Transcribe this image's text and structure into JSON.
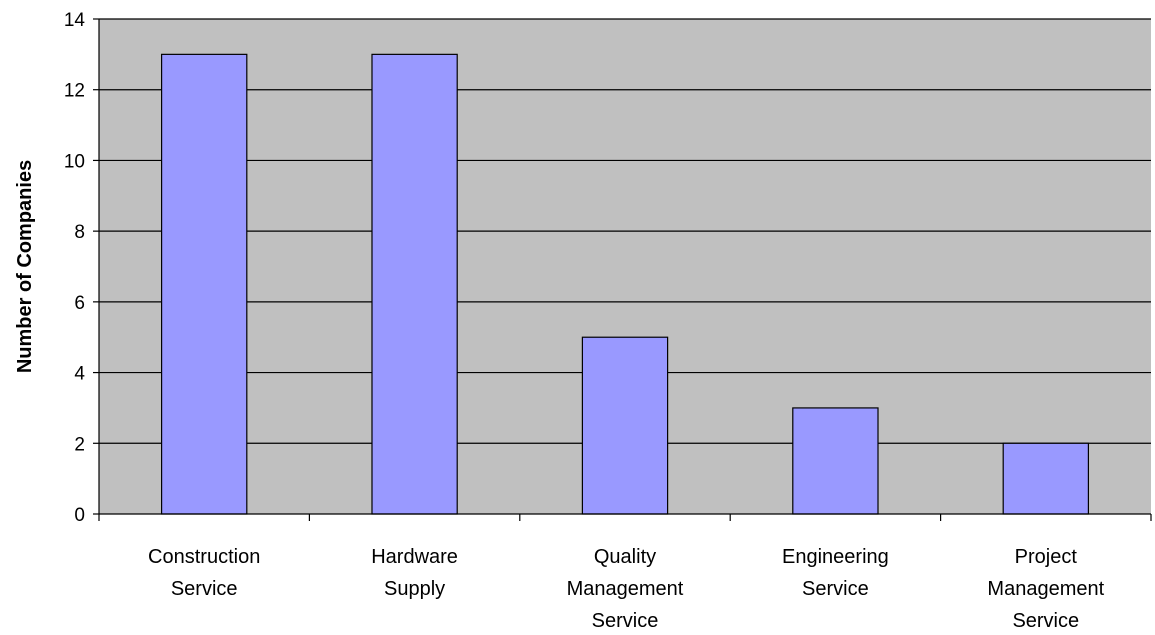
{
  "chart_data": {
    "type": "bar",
    "title": "",
    "xlabel": "",
    "ylabel": "Number of Companies",
    "ylim": [
      0,
      14
    ],
    "yticks": [
      0,
      2,
      4,
      6,
      8,
      10,
      12,
      14
    ],
    "grid": true,
    "legend": "none",
    "categories": [
      [
        "Construction",
        "Service"
      ],
      [
        "Hardware",
        "Supply"
      ],
      [
        "Quality",
        "Management",
        "Service"
      ],
      [
        "Engineering",
        "Service"
      ],
      [
        "Project",
        "Management",
        "Service"
      ]
    ],
    "values": [
      13,
      13,
      5,
      3,
      2
    ],
    "colors": {
      "plot_background": "#c0c0c0",
      "bar_fill": "#9999ff",
      "bar_stroke": "#000000",
      "gridline": "#000000",
      "axis": "#000000"
    }
  }
}
